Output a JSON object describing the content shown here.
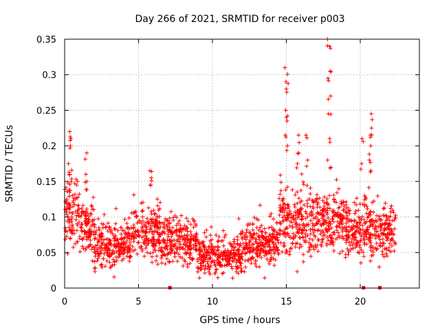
{
  "chart_data": {
    "type": "scatter",
    "title": "Day 266 of 2021, SRMTID for receiver p003",
    "xlabel": "GPS time / hours",
    "ylabel": "SRMTID / TECUs",
    "xlim": [
      0,
      24
    ],
    "ylim": [
      0,
      0.35
    ],
    "xticks": [
      0,
      5,
      10,
      15,
      20
    ],
    "xtick_labels": [
      "0",
      "5",
      "10",
      "15",
      "20"
    ],
    "yticks": [
      0,
      0.05,
      0.1,
      0.15,
      0.2,
      0.25,
      0.3,
      0.35
    ],
    "ytick_labels": [
      "0",
      "0.05",
      "0.1",
      "0.15",
      "0.2",
      "0.25",
      "0.3",
      "0.35"
    ],
    "grid": true,
    "marker": "+",
    "color": "#ff0000",
    "x_range_of_data": [
      0,
      22.4
    ],
    "gap_markers_x": [
      7.1,
      20.2,
      21.3
    ],
    "series": [
      {
        "name": "SRMTID",
        "segments": [
          {
            "x_start": 0.0,
            "x_end": 1.0,
            "mean": 0.1,
            "spread": 0.035
          },
          {
            "x_start": 1.0,
            "x_end": 2.0,
            "mean": 0.085,
            "spread": 0.03
          },
          {
            "x_start": 2.0,
            "x_end": 4.5,
            "mean": 0.06,
            "spread": 0.025
          },
          {
            "x_start": 4.5,
            "x_end": 6.5,
            "mean": 0.075,
            "spread": 0.03
          },
          {
            "x_start": 6.5,
            "x_end": 9.0,
            "mean": 0.065,
            "spread": 0.025
          },
          {
            "x_start": 9.0,
            "x_end": 12.0,
            "mean": 0.045,
            "spread": 0.02
          },
          {
            "x_start": 12.0,
            "x_end": 14.5,
            "mean": 0.06,
            "spread": 0.025
          },
          {
            "x_start": 14.5,
            "x_end": 17.5,
            "mean": 0.09,
            "spread": 0.035
          },
          {
            "x_start": 17.5,
            "x_end": 19.0,
            "mean": 0.095,
            "spread": 0.035
          },
          {
            "x_start": 19.0,
            "x_end": 22.4,
            "mean": 0.08,
            "spread": 0.03
          }
        ],
        "spikes": [
          {
            "x": 0.35,
            "values": [
              0.22,
              0.21,
              0.2,
              0.175,
              0.16
            ]
          },
          {
            "x": 1.5,
            "values": [
              0.19,
              0.16,
              0.15
            ]
          },
          {
            "x": 5.8,
            "values": [
              0.165,
              0.155,
              0.145
            ]
          },
          {
            "x": 15.0,
            "values": [
              0.31,
              0.29,
              0.28,
              0.25,
              0.24,
              0.215,
              0.2
            ]
          },
          {
            "x": 15.8,
            "values": [
              0.215,
              0.19,
              0.175
            ]
          },
          {
            "x": 16.4,
            "values": [
              0.215,
              0.18
            ]
          },
          {
            "x": 17.9,
            "values": [
              0.35,
              0.34,
              0.305,
              0.295,
              0.27,
              0.245,
              0.21,
              0.18
            ]
          },
          {
            "x": 20.7,
            "values": [
              0.245,
              0.225,
              0.215,
              0.2,
              0.18,
              0.165
            ]
          },
          {
            "x": 20.1,
            "values": [
              0.21,
              0.175
            ]
          }
        ]
      }
    ]
  }
}
